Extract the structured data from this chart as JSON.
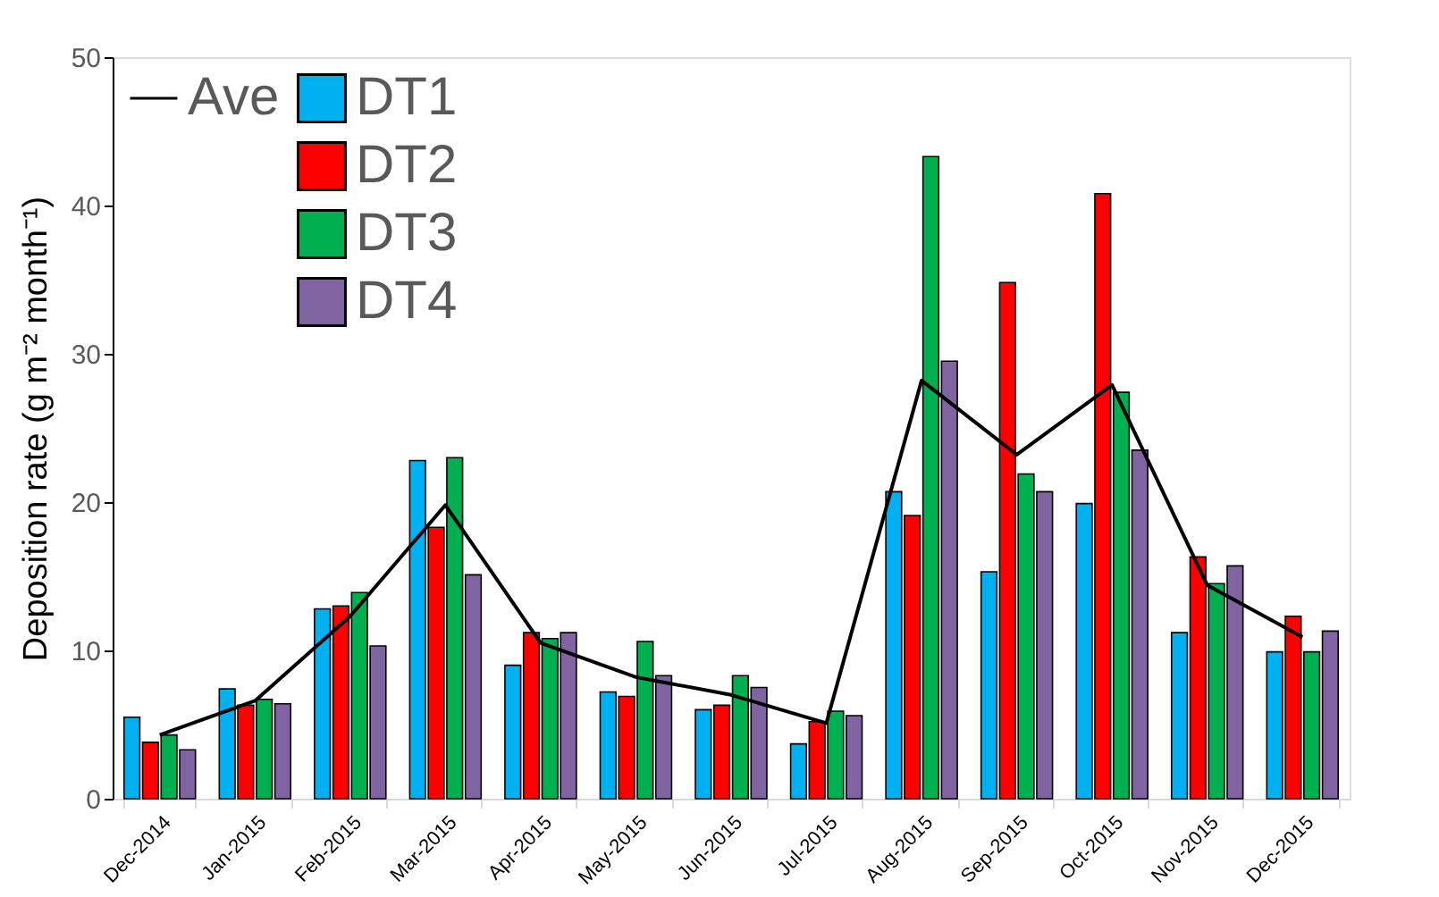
{
  "chart_data": {
    "type": "bar",
    "ylabel": "Deposition rate (g m⁻² month⁻¹)",
    "categories": [
      "Dec-2014",
      "Jan-2015",
      "Feb-2015",
      "Mar-2015",
      "Apr-2015",
      "May-2015",
      "Jun-2015",
      "Jul-2015",
      "Aug-2015",
      "Sep-2015",
      "Oct-2015",
      "Nov-2015",
      "Dec-2015"
    ],
    "series": [
      {
        "name": "DT1",
        "color": "#00b0f0",
        "values": [
          5.5,
          7.4,
          12.8,
          22.8,
          9.0,
          7.2,
          6.0,
          3.7,
          20.7,
          15.3,
          19.9,
          11.2,
          9.9
        ]
      },
      {
        "name": "DT2",
        "color": "#ff0000",
        "values": [
          3.8,
          6.3,
          13.0,
          18.3,
          11.2,
          6.9,
          6.3,
          5.2,
          19.1,
          34.8,
          40.8,
          16.3,
          12.3
        ]
      },
      {
        "name": "DT3",
        "color": "#00b050",
        "values": [
          4.3,
          6.7,
          13.9,
          23.0,
          10.8,
          10.6,
          8.3,
          5.9,
          43.3,
          21.9,
          27.4,
          14.5,
          9.9
        ]
      },
      {
        "name": "DT4",
        "color": "#8064a2",
        "values": [
          3.3,
          6.4,
          10.3,
          15.1,
          11.2,
          8.3,
          7.5,
          5.6,
          29.5,
          20.7,
          23.5,
          15.7,
          11.3
        ]
      },
      {
        "name": "Ave",
        "type": "line",
        "color": "#000000",
        "values": [
          4.3,
          6.6,
          12.3,
          19.8,
          10.5,
          8.2,
          7.0,
          5.1,
          28.2,
          23.2,
          27.9,
          14.4,
          10.9
        ]
      }
    ],
    "ylim": [
      0,
      50
    ],
    "yticks": [
      0,
      10,
      20,
      30,
      40,
      50
    ],
    "grid": false,
    "legend": "top left"
  }
}
